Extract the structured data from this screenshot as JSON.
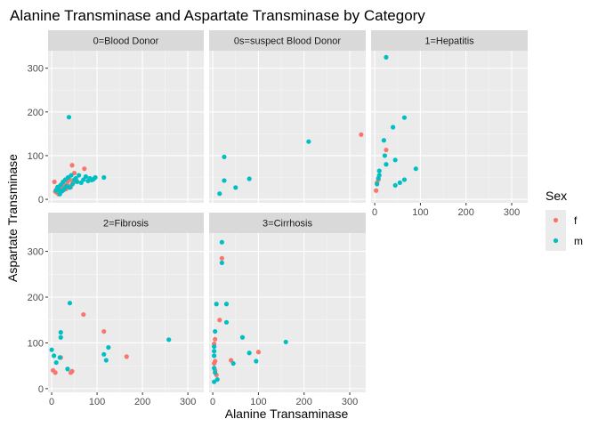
{
  "chart_data": {
    "type": "scatter",
    "title": "Alanine Transminase and Aspartate Transminase by Category",
    "xlabel": "Alanine Transaminase",
    "ylabel": "Aspartate Transminase",
    "xlim": [
      -8,
      335
    ],
    "ylim": [
      -8,
      340
    ],
    "x_ticks": [
      0,
      100,
      200,
      300
    ],
    "y_ticks": [
      0,
      100,
      200,
      300
    ],
    "grid": true,
    "legend": {
      "title": "Sex",
      "position": "right",
      "entries": [
        {
          "label": "f",
          "color": "#F8766D"
        },
        {
          "label": "m",
          "color": "#00BFC4"
        }
      ]
    },
    "panels": [
      {
        "name": "0=Blood Donor",
        "points": [
          {
            "x": 8,
            "y": 18,
            "sex": "f"
          },
          {
            "x": 10,
            "y": 22,
            "sex": "f"
          },
          {
            "x": 12,
            "y": 15,
            "sex": "f"
          },
          {
            "x": 14,
            "y": 25,
            "sex": "f"
          },
          {
            "x": 16,
            "y": 20,
            "sex": "f"
          },
          {
            "x": 18,
            "y": 30,
            "sex": "f"
          },
          {
            "x": 20,
            "y": 17,
            "sex": "f"
          },
          {
            "x": 22,
            "y": 26,
            "sex": "f"
          },
          {
            "x": 24,
            "y": 35,
            "sex": "f"
          },
          {
            "x": 26,
            "y": 21,
            "sex": "f"
          },
          {
            "x": 28,
            "y": 28,
            "sex": "f"
          },
          {
            "x": 30,
            "y": 32,
            "sex": "f"
          },
          {
            "x": 32,
            "y": 24,
            "sex": "f"
          },
          {
            "x": 35,
            "y": 40,
            "sex": "f"
          },
          {
            "x": 38,
            "y": 30,
            "sex": "f"
          },
          {
            "x": 40,
            "y": 45,
            "sex": "f"
          },
          {
            "x": 42,
            "y": 28,
            "sex": "f"
          },
          {
            "x": 45,
            "y": 78,
            "sex": "f"
          },
          {
            "x": 47,
            "y": 38,
            "sex": "f"
          },
          {
            "x": 50,
            "y": 60,
            "sex": "f"
          },
          {
            "x": 55,
            "y": 42,
            "sex": "f"
          },
          {
            "x": 72,
            "y": 70,
            "sex": "f"
          },
          {
            "x": 6,
            "y": 40,
            "sex": "f"
          },
          {
            "x": 15,
            "y": 12,
            "sex": "f"
          },
          {
            "x": 10,
            "y": 20,
            "sex": "m"
          },
          {
            "x": 13,
            "y": 28,
            "sex": "m"
          },
          {
            "x": 17,
            "y": 22,
            "sex": "m"
          },
          {
            "x": 20,
            "y": 33,
            "sex": "m"
          },
          {
            "x": 23,
            "y": 19,
            "sex": "m"
          },
          {
            "x": 25,
            "y": 40,
            "sex": "m"
          },
          {
            "x": 28,
            "y": 24,
            "sex": "m"
          },
          {
            "x": 30,
            "y": 45,
            "sex": "m"
          },
          {
            "x": 33,
            "y": 30,
            "sex": "m"
          },
          {
            "x": 36,
            "y": 50,
            "sex": "m"
          },
          {
            "x": 38,
            "y": 188,
            "sex": "m"
          },
          {
            "x": 40,
            "y": 27,
            "sex": "m"
          },
          {
            "x": 43,
            "y": 55,
            "sex": "m"
          },
          {
            "x": 46,
            "y": 35,
            "sex": "m"
          },
          {
            "x": 50,
            "y": 45,
            "sex": "m"
          },
          {
            "x": 53,
            "y": 48,
            "sex": "m"
          },
          {
            "x": 56,
            "y": 40,
            "sex": "m"
          },
          {
            "x": 60,
            "y": 55,
            "sex": "m"
          },
          {
            "x": 65,
            "y": 38,
            "sex": "m"
          },
          {
            "x": 70,
            "y": 45,
            "sex": "m"
          },
          {
            "x": 75,
            "y": 52,
            "sex": "m"
          },
          {
            "x": 80,
            "y": 42,
            "sex": "m"
          },
          {
            "x": 84,
            "y": 48,
            "sex": "m"
          },
          {
            "x": 88,
            "y": 44,
            "sex": "m"
          },
          {
            "x": 92,
            "y": 46,
            "sex": "m"
          },
          {
            "x": 96,
            "y": 50,
            "sex": "m"
          },
          {
            "x": 115,
            "y": 50,
            "sex": "m"
          },
          {
            "x": 18,
            "y": 12,
            "sex": "m"
          }
        ]
      },
      {
        "name": "0s=suspect Blood Donor",
        "points": [
          {
            "x": 325,
            "y": 148,
            "sex": "f"
          },
          {
            "x": 210,
            "y": 132,
            "sex": "m"
          },
          {
            "x": 25,
            "y": 97,
            "sex": "m"
          },
          {
            "x": 80,
            "y": 47,
            "sex": "m"
          },
          {
            "x": 25,
            "y": 43,
            "sex": "m"
          },
          {
            "x": 50,
            "y": 27,
            "sex": "m"
          },
          {
            "x": 15,
            "y": 13,
            "sex": "m"
          }
        ]
      },
      {
        "name": "1=Hepatitis",
        "points": [
          {
            "x": 25,
            "y": 113,
            "sex": "f"
          },
          {
            "x": 8,
            "y": 45,
            "sex": "f"
          },
          {
            "x": 5,
            "y": 38,
            "sex": "f"
          },
          {
            "x": 3,
            "y": 20,
            "sex": "f"
          },
          {
            "x": 25,
            "y": 325,
            "sex": "m"
          },
          {
            "x": 65,
            "y": 187,
            "sex": "m"
          },
          {
            "x": 40,
            "y": 165,
            "sex": "m"
          },
          {
            "x": 20,
            "y": 135,
            "sex": "m"
          },
          {
            "x": 22,
            "y": 100,
            "sex": "m"
          },
          {
            "x": 25,
            "y": 80,
            "sex": "m"
          },
          {
            "x": 45,
            "y": 90,
            "sex": "m"
          },
          {
            "x": 90,
            "y": 70,
            "sex": "m"
          },
          {
            "x": 10,
            "y": 65,
            "sex": "m"
          },
          {
            "x": 10,
            "y": 55,
            "sex": "m"
          },
          {
            "x": 8,
            "y": 48,
            "sex": "m"
          },
          {
            "x": 65,
            "y": 45,
            "sex": "m"
          },
          {
            "x": 55,
            "y": 38,
            "sex": "m"
          },
          {
            "x": 45,
            "y": 32,
            "sex": "m"
          },
          {
            "x": 5,
            "y": 35,
            "sex": "m"
          }
        ]
      },
      {
        "name": "2=Fibrosis",
        "points": [
          {
            "x": 70,
            "y": 162,
            "sex": "f"
          },
          {
            "x": 115,
            "y": 125,
            "sex": "f"
          },
          {
            "x": 165,
            "y": 70,
            "sex": "f"
          },
          {
            "x": 45,
            "y": 38,
            "sex": "f"
          },
          {
            "x": 3,
            "y": 40,
            "sex": "f"
          },
          {
            "x": 8,
            "y": 35,
            "sex": "f"
          },
          {
            "x": 42,
            "y": 35,
            "sex": "f"
          },
          {
            "x": 20,
            "y": 68,
            "sex": "f"
          },
          {
            "x": 40,
            "y": 187,
            "sex": "m"
          },
          {
            "x": 20,
            "y": 123,
            "sex": "m"
          },
          {
            "x": 20,
            "y": 112,
            "sex": "m"
          },
          {
            "x": 258,
            "y": 107,
            "sex": "m"
          },
          {
            "x": 125,
            "y": 90,
            "sex": "m"
          },
          {
            "x": 0,
            "y": 85,
            "sex": "m"
          },
          {
            "x": 5,
            "y": 72,
            "sex": "m"
          },
          {
            "x": 115,
            "y": 75,
            "sex": "m"
          },
          {
            "x": 120,
            "y": 62,
            "sex": "m"
          },
          {
            "x": 10,
            "y": 57,
            "sex": "m"
          },
          {
            "x": 35,
            "y": 43,
            "sex": "m"
          },
          {
            "x": 18,
            "y": 68,
            "sex": "m"
          }
        ]
      },
      {
        "name": "3=Cirrhosis",
        "points": [
          {
            "x": 20,
            "y": 285,
            "sex": "f"
          },
          {
            "x": 15,
            "y": 150,
            "sex": "f"
          },
          {
            "x": 5,
            "y": 108,
            "sex": "f"
          },
          {
            "x": 3,
            "y": 98,
            "sex": "f"
          },
          {
            "x": 100,
            "y": 80,
            "sex": "f"
          },
          {
            "x": 5,
            "y": 60,
            "sex": "f"
          },
          {
            "x": 5,
            "y": 40,
            "sex": "f"
          },
          {
            "x": 40,
            "y": 62,
            "sex": "f"
          },
          {
            "x": 8,
            "y": 30,
            "sex": "f"
          },
          {
            "x": 3,
            "y": 55,
            "sex": "f"
          },
          {
            "x": 20,
            "y": 320,
            "sex": "m"
          },
          {
            "x": 20,
            "y": 275,
            "sex": "m"
          },
          {
            "x": 30,
            "y": 185,
            "sex": "m"
          },
          {
            "x": 8,
            "y": 185,
            "sex": "m"
          },
          {
            "x": 30,
            "y": 145,
            "sex": "m"
          },
          {
            "x": 5,
            "y": 125,
            "sex": "m"
          },
          {
            "x": 65,
            "y": 112,
            "sex": "m"
          },
          {
            "x": 160,
            "y": 102,
            "sex": "m"
          },
          {
            "x": 3,
            "y": 92,
            "sex": "m"
          },
          {
            "x": 3,
            "y": 82,
            "sex": "m"
          },
          {
            "x": 80,
            "y": 78,
            "sex": "m"
          },
          {
            "x": 3,
            "y": 72,
            "sex": "m"
          },
          {
            "x": 95,
            "y": 60,
            "sex": "m"
          },
          {
            "x": 45,
            "y": 55,
            "sex": "m"
          },
          {
            "x": 3,
            "y": 45,
            "sex": "m"
          },
          {
            "x": 5,
            "y": 35,
            "sex": "m"
          },
          {
            "x": 10,
            "y": 20,
            "sex": "m"
          },
          {
            "x": 3,
            "y": 15,
            "sex": "m"
          }
        ]
      }
    ]
  }
}
